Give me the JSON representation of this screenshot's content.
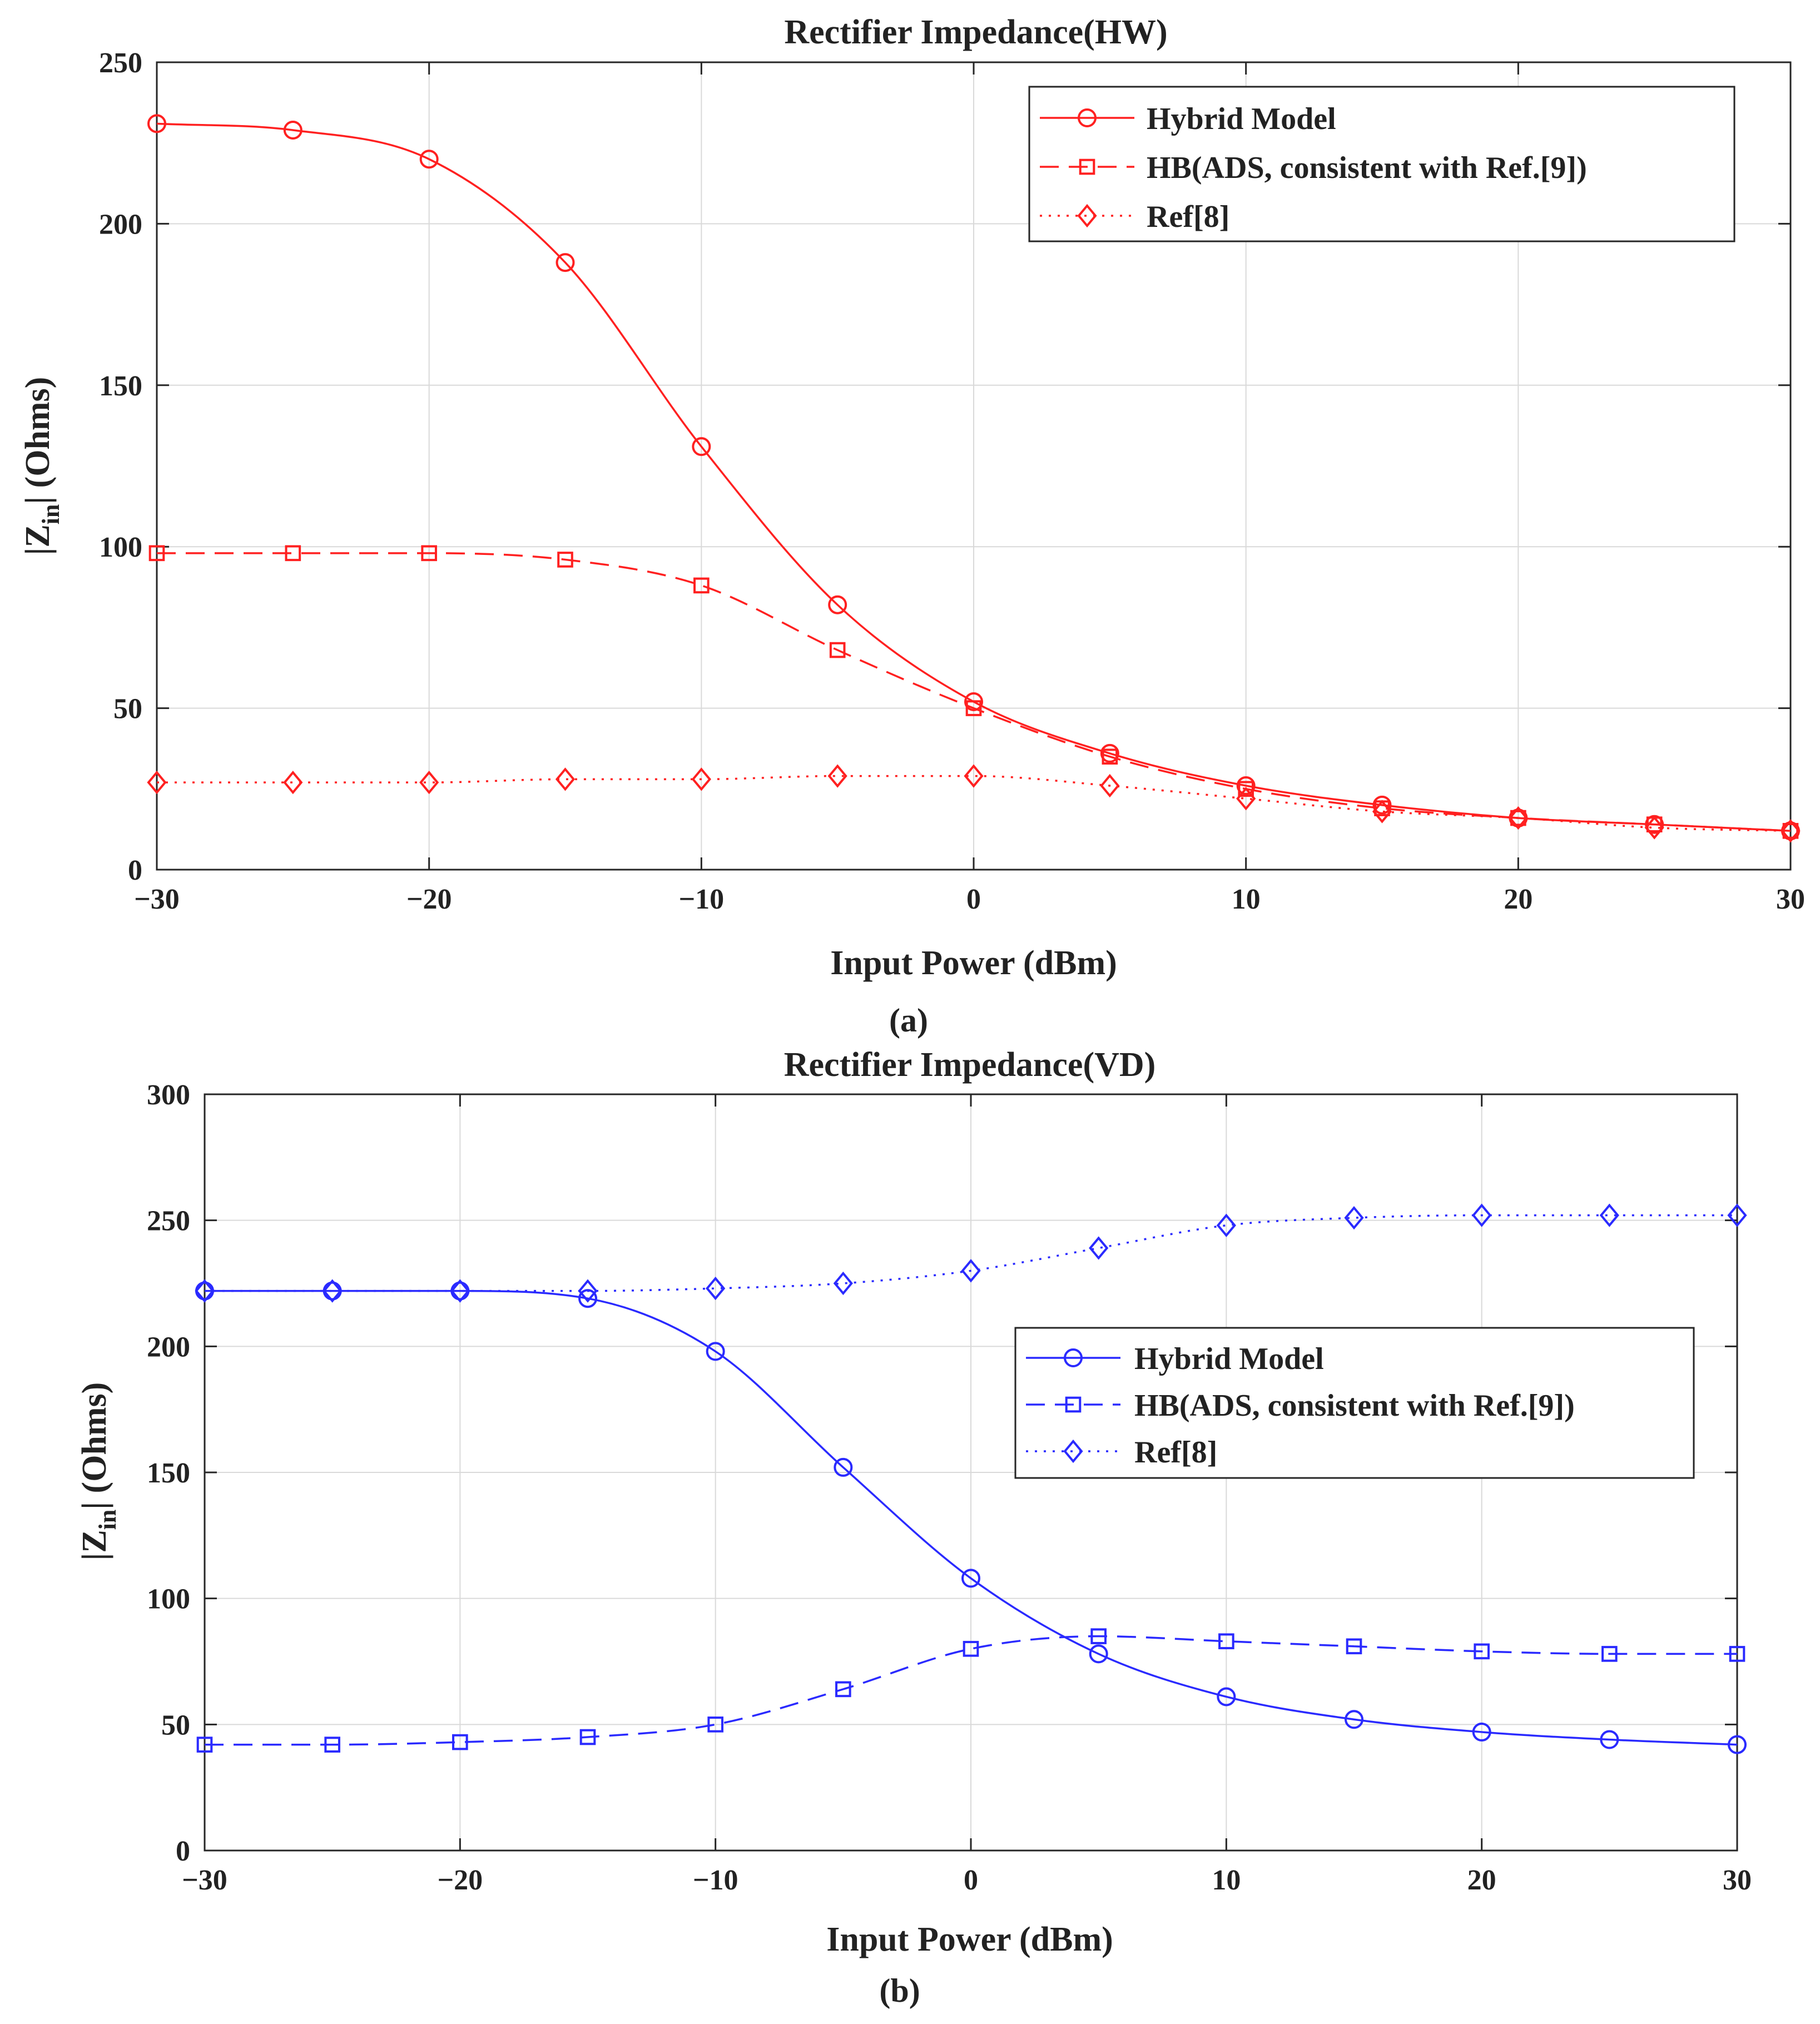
{
  "chart_data": [
    {
      "type": "line",
      "panel_label": "a",
      "title": "Rectifier Impedance(HW)",
      "xlabel": "Input Power (dBm)",
      "ylabel": {
        "prefix": "|Z",
        "subscript": "in",
        "suffix": "| (Ohms)"
      },
      "xlim": [
        -30,
        30
      ],
      "ylim": [
        0,
        250
      ],
      "xticks": [
        -30,
        -20,
        -10,
        0,
        10,
        20,
        30
      ],
      "xtick_labels": [
        "−30",
        "−20",
        "−10",
        "0",
        "10",
        "20",
        "30"
      ],
      "yticks": [
        0,
        50,
        100,
        150,
        200,
        250
      ],
      "ytick_labels": [
        "0",
        "50",
        "100",
        "150",
        "200",
        "250"
      ],
      "grid": true,
      "legend_position": "top-right",
      "color": "#ff2020",
      "x": [
        -30,
        -25,
        -20,
        -15,
        -10,
        -5,
        0,
        5,
        10,
        15,
        20,
        25,
        30
      ],
      "series": [
        {
          "name": "Hybrid Model",
          "style": "solid",
          "marker": "circle",
          "values": [
            231,
            229,
            220,
            188,
            131,
            82,
            52,
            36,
            26,
            20,
            16,
            14,
            12
          ]
        },
        {
          "name": "HB(ADS, consistent with Ref.[9])",
          "style": "dashed",
          "marker": "square",
          "values": [
            98,
            98,
            98,
            96,
            88,
            68,
            50,
            35,
            25,
            19,
            16,
            14,
            12
          ]
        },
        {
          "name": "Ref[8]",
          "style": "dotted",
          "marker": "diamond",
          "values": [
            27,
            27,
            27,
            28,
            28,
            29,
            29,
            26,
            22,
            18,
            16,
            13,
            12
          ]
        }
      ]
    },
    {
      "type": "line",
      "panel_label": "b",
      "title": "Rectifier Impedance(VD)",
      "xlabel": "Input Power (dBm)",
      "ylabel": {
        "prefix": "|Z",
        "subscript": "in",
        "suffix": "| (Ohms)"
      },
      "xlim": [
        -30,
        30
      ],
      "ylim": [
        0,
        300
      ],
      "xticks": [
        -30,
        -20,
        -10,
        0,
        10,
        20,
        30
      ],
      "xtick_labels": [
        "−30",
        "−20",
        "−10",
        "0",
        "10",
        "20",
        "30"
      ],
      "yticks": [
        0,
        50,
        100,
        150,
        200,
        250,
        300
      ],
      "ytick_labels": [
        "0",
        "50",
        "100",
        "150",
        "200",
        "250",
        "300"
      ],
      "grid": true,
      "legend_position": "center-right",
      "color": "#2a2aff",
      "x": [
        -30,
        -25,
        -20,
        -15,
        -10,
        -5,
        0,
        5,
        10,
        15,
        20,
        25,
        30
      ],
      "series": [
        {
          "name": "Hybrid Model",
          "style": "solid",
          "marker": "circle",
          "values": [
            222,
            222,
            222,
            219,
            198,
            152,
            108,
            78,
            61,
            52,
            47,
            44,
            42
          ]
        },
        {
          "name": "HB(ADS, consistent with Ref.[9])",
          "style": "dashed",
          "marker": "square",
          "values": [
            42,
            42,
            43,
            45,
            50,
            64,
            80,
            85,
            83,
            81,
            79,
            78,
            78
          ]
        },
        {
          "name": "Ref[8]",
          "style": "dotted",
          "marker": "diamond",
          "values": [
            222,
            222,
            222,
            222,
            223,
            225,
            230,
            239,
            248,
            251,
            252,
            252,
            252
          ]
        }
      ]
    }
  ]
}
